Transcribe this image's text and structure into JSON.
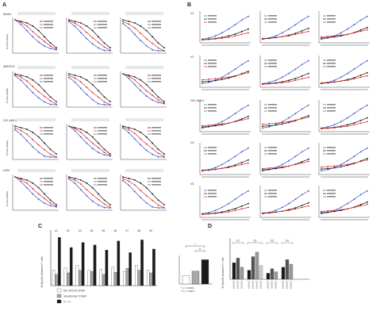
{
  "panels": {
    "A": {
      "letter": "A",
      "row_labels": [
        "MeWo",
        "WM1575",
        "OCI-AML3",
        "U937"
      ],
      "ylabel": "% Cell viability",
      "legend": [
        "V + V",
        "Venetoclax",
        "ML-SF129",
        "V + V"
      ]
    },
    "B": {
      "letter": "B",
      "row_labels": [
        "V1",
        "V2",
        "OCI-AML3",
        "V4",
        "V5"
      ],
      "ylabel": "% Specific apoptosis",
      "legend": [
        "V + V",
        "Venetoclax",
        "ML-SF129"
      ]
    },
    "C": {
      "letter": "C",
      "bar_labels": [
        "#1",
        "#2",
        "#3",
        "#4",
        "#5",
        "#6",
        "#7",
        "#8",
        "#9"
      ],
      "ylabel": "% Specific Annexin V+ cells",
      "legend": [
        "ML-SF129 20nM",
        "Venetoclax 0.5uM",
        "V + V"
      ],
      "inset": {
        "sig1": "*",
        "sig2": "**",
        "note1": "* p = 0.0090",
        "note2": "** p = 0.0037"
      }
    },
    "D": {
      "letter": "D",
      "ylabel": "% Specific Annexin V+ cells",
      "groups": [
        "V1",
        "V2",
        "V3",
        "V4"
      ]
    }
  },
  "colors": {
    "black": "#111111",
    "red": "#d9302c",
    "blue": "#3b56c4",
    "grey": "#8a8a8a"
  }
}
